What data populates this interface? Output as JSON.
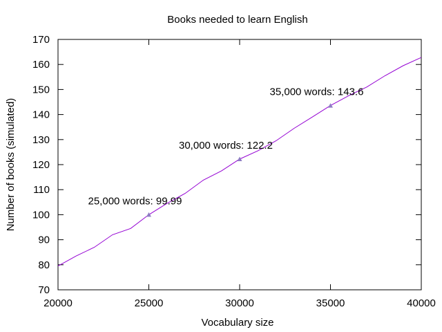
{
  "chart_data": {
    "type": "line",
    "title": "Books needed to learn English",
    "xlabel": "Vocabulary size",
    "ylabel": "Number of books (simulated)",
    "xlim": [
      20000,
      40000
    ],
    "ylim": [
      70,
      170
    ],
    "x_ticks": [
      20000,
      25000,
      30000,
      35000,
      40000
    ],
    "y_ticks": [
      70,
      80,
      90,
      100,
      110,
      120,
      130,
      140,
      150,
      160,
      170
    ],
    "grid": false,
    "legend": "none",
    "series": [
      {
        "color": "#9400d3",
        "x": [
          20000,
          21000,
          22000,
          23000,
          24000,
          25000,
          26000,
          27000,
          28000,
          29000,
          30000,
          31000,
          32000,
          33000,
          34000,
          35000,
          36000,
          37000,
          38000,
          39000,
          40000
        ],
        "y": [
          79.5,
          83.5,
          87,
          92,
          94.5,
          99.99,
          104.5,
          108.5,
          113.8,
          117.5,
          122.2,
          125.5,
          129.5,
          134.5,
          139,
          143.6,
          147.5,
          151,
          155.5,
          159.5,
          162.8
        ]
      }
    ],
    "markers": [
      {
        "x": 25000,
        "y": 99.99,
        "label": "25,000 words: 99.99"
      },
      {
        "x": 30000,
        "y": 122.2,
        "label": "30,000 words: 122.2"
      },
      {
        "x": 35000,
        "y": 143.6,
        "label": "35,000 words: 143.6"
      }
    ],
    "marker_color": "#8e7cc3"
  }
}
